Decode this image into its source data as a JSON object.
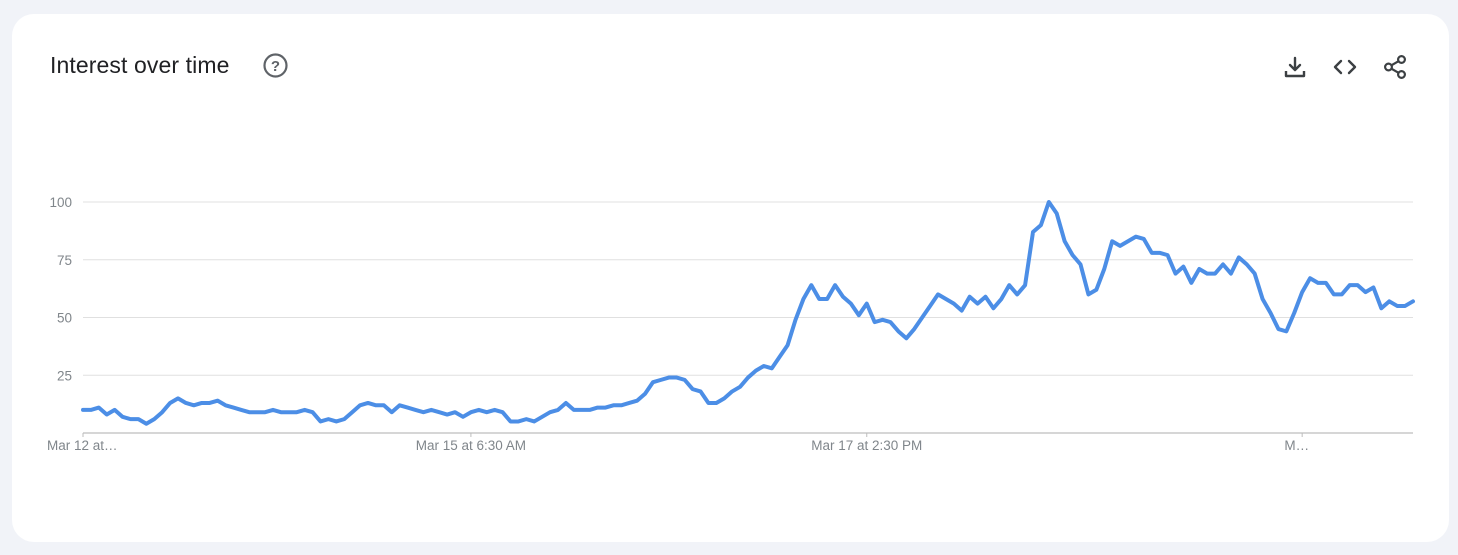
{
  "header": {
    "title": "Interest over time",
    "help_icon": "help-circle-icon",
    "actions": [
      {
        "name": "download-button",
        "icon": "download-icon"
      },
      {
        "name": "embed-button",
        "icon": "code-icon"
      },
      {
        "name": "share-button",
        "icon": "share-icon"
      }
    ]
  },
  "colors": {
    "line": "#4c8ee6",
    "grid": "#e0e0e0",
    "axis": "#bdbdbd",
    "tick_text": "#80868b",
    "title_text": "#202124",
    "icon": "#5f6368",
    "background": "#f1f3f8",
    "card": "#ffffff"
  },
  "chart_data": {
    "type": "line",
    "title": "Interest over time",
    "xlabel": "",
    "ylabel": "",
    "ylim": [
      0,
      100
    ],
    "yticks": [
      25,
      50,
      75,
      100
    ],
    "grid": true,
    "x_tick_labels": [
      "Mar 12 at…",
      "Mar 15 at 6:30 AM",
      "Mar 17 at 2:30 PM",
      "M…"
    ],
    "x_tick_positions": [
      0,
      49,
      99,
      154
    ],
    "series": [
      {
        "name": "",
        "values": [
          10,
          10,
          11,
          8,
          10,
          7,
          6,
          6,
          4,
          6,
          9,
          13,
          15,
          13,
          12,
          13,
          13,
          14,
          12,
          11,
          10,
          9,
          9,
          9,
          10,
          9,
          9,
          9,
          10,
          9,
          5,
          6,
          5,
          6,
          9,
          12,
          13,
          12,
          12,
          9,
          12,
          11,
          10,
          9,
          10,
          9,
          8,
          9,
          7,
          9,
          10,
          9,
          10,
          9,
          5,
          5,
          6,
          5,
          7,
          9,
          10,
          13,
          10,
          10,
          10,
          11,
          11,
          12,
          12,
          13,
          14,
          17,
          22,
          23,
          24,
          24,
          23,
          19,
          18,
          13,
          13,
          15,
          18,
          20,
          24,
          27,
          29,
          28,
          33,
          38,
          49,
          58,
          64,
          58,
          58,
          64,
          59,
          56,
          51,
          56,
          48,
          49,
          48,
          44,
          41,
          45,
          50,
          55,
          60,
          58,
          56,
          53,
          59,
          56,
          59,
          54,
          58,
          64,
          60,
          64,
          87,
          90,
          100,
          95,
          83,
          77,
          73,
          60,
          62,
          71,
          83,
          81,
          83,
          85,
          84,
          78,
          78,
          77,
          69,
          72,
          65,
          71,
          69,
          69,
          73,
          69,
          76,
          73,
          69,
          58,
          52,
          45,
          44,
          52,
          61,
          67,
          65,
          65,
          60,
          60,
          64,
          64,
          61,
          63,
          54,
          57,
          55,
          55,
          57
        ]
      }
    ]
  }
}
